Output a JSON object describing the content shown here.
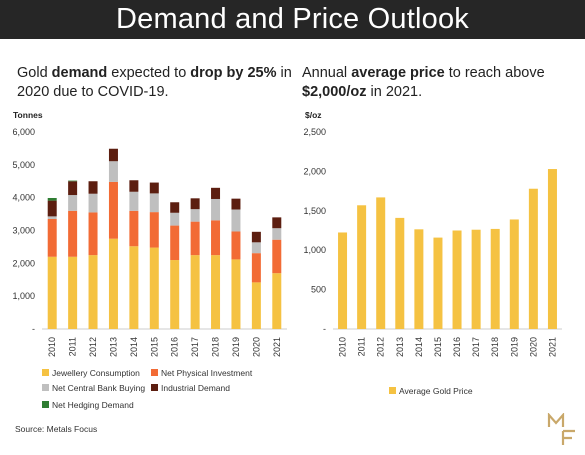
{
  "banner": {
    "title": "Demand and Price Outlook"
  },
  "headline_left": {
    "p1": "Gold ",
    "b1": "demand",
    "p2": " expected to ",
    "b2": "drop by 25%",
    "p3": " in 2020 due to COVID-19."
  },
  "headline_right": {
    "p1": "Annual ",
    "b1": "average price",
    "p2": " to reach above ",
    "b2": "$2,000/oz",
    "p3": " in 2021."
  },
  "source": "Source: Metals Focus",
  "colors": {
    "jewellery": "#F5C242",
    "physical": "#F26B35",
    "central_bank": "#BFBFBF",
    "industrial": "#5C1E10",
    "hedging": "#2E7D32",
    "price": "#F5C242",
    "banner": "#262626",
    "logo": "#C9A86A"
  },
  "chart_data": [
    {
      "type": "bar",
      "stacked": true,
      "ylabel": "Tonnes",
      "ylim": [
        0,
        6000
      ],
      "yticks": [
        "-",
        "1,000",
        "2,000",
        "3,000",
        "4,000",
        "5,000",
        "6,000"
      ],
      "categories": [
        "2010",
        "2011",
        "2012",
        "2013",
        "2014",
        "2015",
        "2016",
        "2017",
        "2018",
        "2019",
        "2020",
        "2021"
      ],
      "series": [
        {
          "name": "Jewellery Consumption",
          "key": "jewellery",
          "values": [
            2200,
            2200,
            2250,
            2750,
            2520,
            2480,
            2100,
            2250,
            2250,
            2120,
            1420,
            1700
          ]
        },
        {
          "name": "Net Physical Investment",
          "key": "physical",
          "values": [
            1150,
            1400,
            1300,
            1730,
            1080,
            1080,
            1050,
            1020,
            1060,
            850,
            890,
            1020
          ]
        },
        {
          "name": "Net Central Bank Buying",
          "key": "central_bank",
          "values": [
            80,
            480,
            570,
            630,
            580,
            570,
            390,
            380,
            650,
            670,
            330,
            350
          ]
        },
        {
          "name": "Industrial Demand",
          "key": "industrial",
          "values": [
            480,
            420,
            380,
            380,
            350,
            330,
            320,
            330,
            340,
            330,
            320,
            330
          ]
        },
        {
          "name": "Net Hedging Demand",
          "key": "hedging",
          "values": [
            80,
            20,
            0,
            0,
            0,
            0,
            0,
            0,
            0,
            0,
            0,
            0
          ]
        }
      ],
      "legend": "bottom"
    },
    {
      "type": "bar",
      "ylabel": "$/oz",
      "ylim": [
        0,
        2500
      ],
      "yticks": [
        "-",
        "500",
        "1,000",
        "1,500",
        "2,000",
        "2,500"
      ],
      "categories": [
        "2010",
        "2011",
        "2012",
        "2013",
        "2014",
        "2015",
        "2016",
        "2017",
        "2018",
        "2019",
        "2020",
        "2021"
      ],
      "series": [
        {
          "name": "Average Gold Price",
          "key": "price",
          "values": [
            1225,
            1570,
            1670,
            1410,
            1265,
            1160,
            1250,
            1260,
            1270,
            1390,
            1780,
            2030
          ]
        }
      ],
      "legend": "bottom"
    }
  ]
}
